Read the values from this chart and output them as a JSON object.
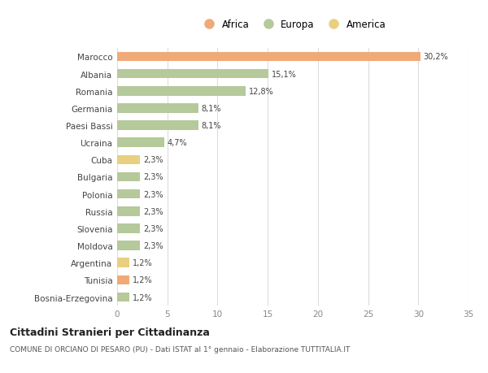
{
  "countries": [
    "Marocco",
    "Albania",
    "Romania",
    "Germania",
    "Paesi Bassi",
    "Ucraina",
    "Cuba",
    "Bulgaria",
    "Polonia",
    "Russia",
    "Slovenia",
    "Moldova",
    "Argentina",
    "Tunisia",
    "Bosnia-Erzegovina"
  ],
  "values": [
    30.2,
    15.1,
    12.8,
    8.1,
    8.1,
    4.7,
    2.3,
    2.3,
    2.3,
    2.3,
    2.3,
    2.3,
    1.2,
    1.2,
    1.2
  ],
  "labels": [
    "30,2%",
    "15,1%",
    "12,8%",
    "8,1%",
    "8,1%",
    "4,7%",
    "2,3%",
    "2,3%",
    "2,3%",
    "2,3%",
    "2,3%",
    "2,3%",
    "1,2%",
    "1,2%",
    "1,2%"
  ],
  "colors": [
    "#f0aa78",
    "#b5c99a",
    "#b5c99a",
    "#b5c99a",
    "#b5c99a",
    "#b5c99a",
    "#e8d080",
    "#b5c99a",
    "#b5c99a",
    "#b5c99a",
    "#b5c99a",
    "#b5c99a",
    "#e8d080",
    "#f0aa78",
    "#b5c99a"
  ],
  "legend_labels": [
    "Africa",
    "Europa",
    "America"
  ],
  "legend_colors": [
    "#f0aa78",
    "#b5c99a",
    "#e8d080"
  ],
  "title": "Cittadini Stranieri per Cittadinanza",
  "subtitle": "COMUNE DI ORCIANO DI PESARO (PU) - Dati ISTAT al 1° gennaio - Elaborazione TUTTITALIA.IT",
  "xlim": [
    0,
    35
  ],
  "xticks": [
    0,
    5,
    10,
    15,
    20,
    25,
    30,
    35
  ],
  "bg_color": "#ffffff",
  "grid_color": "#dddddd",
  "bar_height": 0.55
}
